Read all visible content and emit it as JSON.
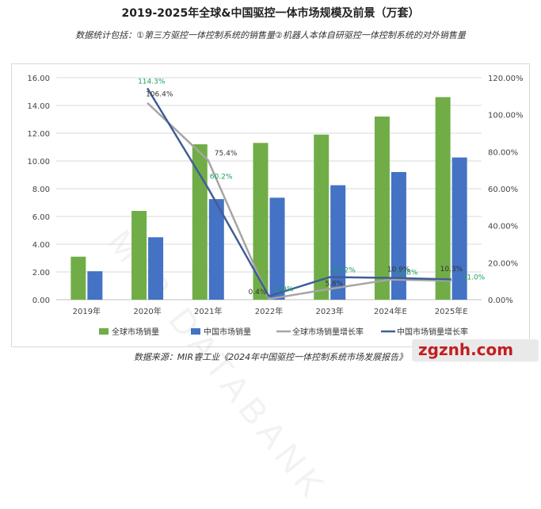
{
  "header": {
    "title": "2019-2025年全球&中国驱控一体市场规模及前景（万套）",
    "subtitle": "数据统计包括：①第三方驱控一体控制系统的销售量②机器人本体自研驱控一体控制系统的对外销售量"
  },
  "footer": {
    "source": "数据来源：MIR睿工业《2024年中国驱控一体控制系统市场发展报告》",
    "logo_text": "zgznh.com",
    "watermark_text": "MIR DATABANK"
  },
  "colors": {
    "global_sales": "#70ad47",
    "china_sales": "#4472c4",
    "global_growth": "#a5a5a5",
    "china_growth": "#3f5e96",
    "china_growth_label": "#1aa35a"
  },
  "chart_data": {
    "type": "bar",
    "categories": [
      "2019年",
      "2020年",
      "2021年",
      "2022年",
      "2023年",
      "2024年E",
      "2025年E"
    ],
    "series": [
      {
        "name": "全球市场销量",
        "kind": "bar",
        "axis": "left",
        "values": [
          3.1,
          6.4,
          11.2,
          11.3,
          11.9,
          13.2,
          14.6
        ]
      },
      {
        "name": "中国市场销量",
        "kind": "bar",
        "axis": "left",
        "values": [
          2.05,
          4.5,
          7.25,
          7.35,
          8.25,
          9.2,
          10.25
        ]
      },
      {
        "name": "全球市场销量增长率",
        "kind": "line",
        "axis": "right",
        "values": [
          null,
          106.4,
          75.4,
          0.4,
          5.8,
          10.9,
          10.3
        ],
        "labels": [
          "",
          "106.4%",
          "75.4%",
          "0.4%",
          "5.8%",
          "10.9%",
          "10.3%"
        ]
      },
      {
        "name": "中国市场销量增长率",
        "kind": "line",
        "axis": "right",
        "values": [
          null,
          114.3,
          60.2,
          1.9,
          12.2,
          11.8,
          11.0
        ],
        "labels": [
          "",
          "114.3%",
          "60.2%",
          "1.9%",
          "12.2%",
          "11.8%",
          "11.0%"
        ]
      }
    ],
    "y_left": {
      "min": 0,
      "max": 16,
      "ticks": [
        "0.00",
        "2.00",
        "4.00",
        "6.00",
        "8.00",
        "10.00",
        "12.00",
        "14.00",
        "16.00"
      ]
    },
    "y_right": {
      "min": 0,
      "max": 120,
      "ticks": [
        "0.00%",
        "20.00%",
        "40.00%",
        "60.00%",
        "80.00%",
        "100.00%",
        "120.00%"
      ]
    },
    "grid": true,
    "legend_position": "bottom"
  }
}
